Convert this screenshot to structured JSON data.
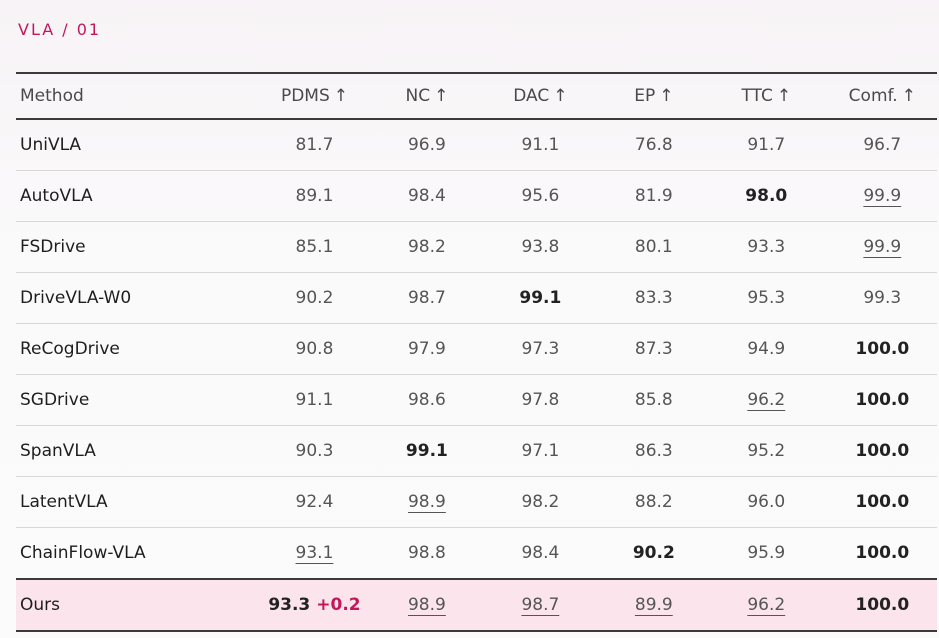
{
  "section_tag": "VLA / 01",
  "table": {
    "headers": [
      "Method",
      "PDMS",
      "NC",
      "DAC",
      "EP",
      "TTC",
      "Comf."
    ],
    "arrow": "↑",
    "rows": [
      {
        "method": "UniVLA",
        "values": [
          {
            "v": "81.7"
          },
          {
            "v": "96.9"
          },
          {
            "v": "91.1"
          },
          {
            "v": "76.8"
          },
          {
            "v": "91.7"
          },
          {
            "v": "96.7"
          }
        ]
      },
      {
        "method": "AutoVLA",
        "values": [
          {
            "v": "89.1"
          },
          {
            "v": "98.4"
          },
          {
            "v": "95.6"
          },
          {
            "v": "81.9"
          },
          {
            "v": "98.0",
            "bold": true
          },
          {
            "v": "99.9",
            "underline": true
          }
        ]
      },
      {
        "method": "FSDrive",
        "values": [
          {
            "v": "85.1"
          },
          {
            "v": "98.2"
          },
          {
            "v": "93.8"
          },
          {
            "v": "80.1"
          },
          {
            "v": "93.3"
          },
          {
            "v": "99.9",
            "underline": true
          }
        ]
      },
      {
        "method": "DriveVLA-W0",
        "values": [
          {
            "v": "90.2"
          },
          {
            "v": "98.7"
          },
          {
            "v": "99.1",
            "bold": true
          },
          {
            "v": "83.3"
          },
          {
            "v": "95.3"
          },
          {
            "v": "99.3"
          }
        ]
      },
      {
        "method": "ReCogDrive",
        "values": [
          {
            "v": "90.8"
          },
          {
            "v": "97.9"
          },
          {
            "v": "97.3"
          },
          {
            "v": "87.3"
          },
          {
            "v": "94.9"
          },
          {
            "v": "100.0",
            "bold": true
          }
        ]
      },
      {
        "method": "SGDrive",
        "values": [
          {
            "v": "91.1"
          },
          {
            "v": "98.6"
          },
          {
            "v": "97.8"
          },
          {
            "v": "85.8"
          },
          {
            "v": "96.2",
            "underline": true
          },
          {
            "v": "100.0",
            "bold": true
          }
        ]
      },
      {
        "method": "SpanVLA",
        "values": [
          {
            "v": "90.3"
          },
          {
            "v": "99.1",
            "bold": true
          },
          {
            "v": "97.1"
          },
          {
            "v": "86.3"
          },
          {
            "v": "95.2"
          },
          {
            "v": "100.0",
            "bold": true
          }
        ]
      },
      {
        "method": "LatentVLA",
        "values": [
          {
            "v": "92.4"
          },
          {
            "v": "98.9",
            "underline": true
          },
          {
            "v": "98.2"
          },
          {
            "v": "88.2"
          },
          {
            "v": "96.0"
          },
          {
            "v": "100.0",
            "bold": true
          }
        ]
      },
      {
        "method": "ChainFlow-VLA",
        "sep_above": true,
        "values": [
          {
            "v": "93.1",
            "underline": true
          },
          {
            "v": "98.8"
          },
          {
            "v": "98.4"
          },
          {
            "v": "90.2",
            "bold": true
          },
          {
            "v": "95.9"
          },
          {
            "v": "100.0",
            "bold": true
          }
        ]
      },
      {
        "method": "Ours",
        "ours": true,
        "values": [
          {
            "v": "93.3",
            "bold": true,
            "delta": "+0.2"
          },
          {
            "v": "98.9",
            "underline": true
          },
          {
            "v": "98.7",
            "underline": true
          },
          {
            "v": "89.9",
            "underline": true
          },
          {
            "v": "96.2",
            "underline": true
          },
          {
            "v": "100.0",
            "bold": true
          }
        ]
      }
    ]
  },
  "colors": {
    "accent": "#c2185b",
    "highlight_row": "#fbe4ec"
  }
}
